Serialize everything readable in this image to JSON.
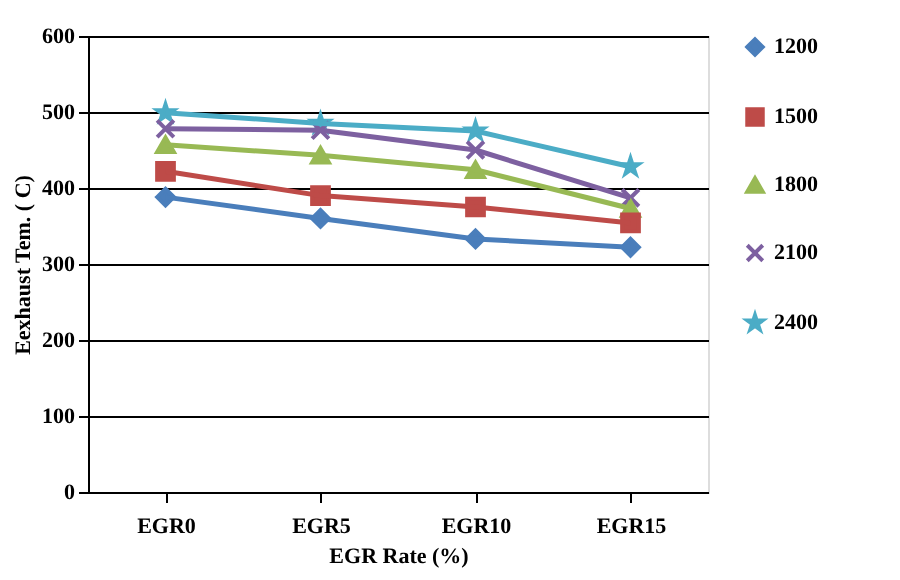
{
  "chart_data": {
    "type": "line",
    "xlabel": "EGR  Rate   (%)",
    "ylabel": "Eexhaust   Tem.  ( C)",
    "categories": [
      "EGR0",
      "EGR5",
      "EGR10",
      "EGR15"
    ],
    "series": [
      {
        "name": "1200",
        "color": "#4a7ebb",
        "marker": "diamond",
        "values": [
          388,
          360,
          333,
          322
        ]
      },
      {
        "name": "1500",
        "color": "#be4b48",
        "marker": "square",
        "values": [
          422,
          390,
          375,
          354
        ]
      },
      {
        "name": "1800",
        "color": "#98b954",
        "marker": "triangle",
        "values": [
          457,
          443,
          424,
          373
        ]
      },
      {
        "name": "2100",
        "color": "#7d60a0",
        "marker": "cross",
        "values": [
          478,
          476,
          450,
          387
        ]
      },
      {
        "name": "2400",
        "color": "#4bacc6",
        "marker": "star",
        "values": [
          499,
          485,
          475,
          428
        ]
      }
    ],
    "ylim": [
      0,
      600
    ],
    "yticks": [
      0,
      100,
      200,
      300,
      400,
      500,
      600
    ],
    "grid": "y",
    "legend": "right",
    "line_style": "solid"
  }
}
